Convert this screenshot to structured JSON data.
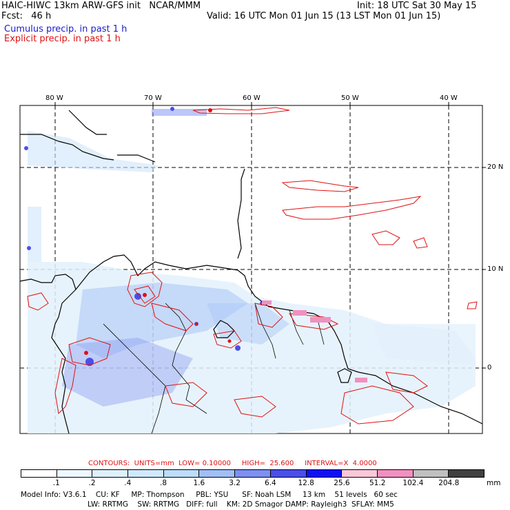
{
  "header": {
    "title": "HAIC-HIWC 13km ARW-GFS init   NCAR/MMM",
    "fcst": "Fcst:   46 h",
    "init": "Init: 18 UTC Sat 30 May 15",
    "valid": "Valid: 16 UTC Mon 01 Jun 15 (13 LST Mon 01 Jun 15)",
    "legend_cumulus": "Cumulus precip. in past 1 h",
    "legend_explicit": "Explicit precip. in past 1 h"
  },
  "map": {
    "lon_labels": [
      "80 W",
      "70 W",
      "60 W",
      "50 W",
      "40 W"
    ],
    "lat_labels": [
      "20 N",
      "10 N",
      "0"
    ],
    "colors": {
      "cumulus": "#3a3ae0",
      "explicit": "#e01010",
      "land": "#000000"
    }
  },
  "contours_text": "CONTOURS:  UNITS=mm  LOW= 0.10000     HIGH=  25.600     INTERVAL=X  4.0000",
  "colorbar": {
    "ticks": [
      ".1",
      ".2",
      ".4",
      ".8",
      "1.6",
      "3.2",
      "6.4",
      "12.8",
      "25.6",
      "51.2",
      "102.4",
      "204.8"
    ],
    "unit": "mm",
    "colors": [
      "#ffffff",
      "#eef8ff",
      "#dff0fa",
      "#d0e8fb",
      "#bcdcf7",
      "#a0bff5",
      "#7d8ff0",
      "#4a4fe8",
      "#1010f5",
      "#f8c8d8",
      "#f090c0",
      "#c0c0c0",
      "#404040",
      "#cc99ff"
    ]
  },
  "model_info": {
    "line1": "Model Info: V3.6.1    CU: KF     MP: Thompson     PBL: YSU      SF: Noah LSM     13 km    51 levels   60 sec",
    "line2": "LW: RRTMG    SW: RRTMG   DIFF: full    KM: 2D Smagor DAMP: Rayleigh3  SFLAY: MM5"
  }
}
